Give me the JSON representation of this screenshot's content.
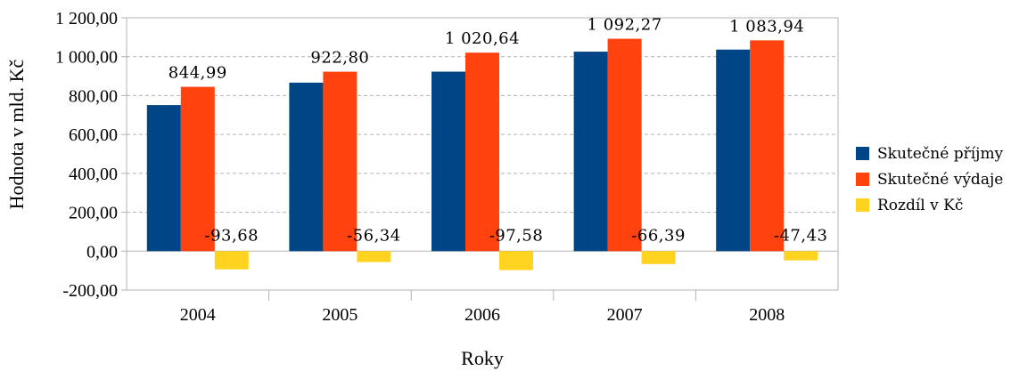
{
  "chart_data": {
    "type": "bar",
    "categories": [
      "2004",
      "2005",
      "2006",
      "2007",
      "2008"
    ],
    "series": [
      {
        "name": "Skutečné příjmy",
        "color": "#004586",
        "values": [
          751.31,
          866.46,
          923.06,
          1025.88,
          1036.51
        ],
        "labels": [
          "",
          "",
          "",
          "",
          ""
        ]
      },
      {
        "name": "Skutečné výdaje",
        "color": "#ff420e",
        "values": [
          844.99,
          922.8,
          1020.64,
          1092.27,
          1083.94
        ],
        "labels": [
          "844,99",
          "922,80",
          "1 020,64",
          "1 092,27",
          "1 083,94"
        ]
      },
      {
        "name": "Rozdíl v Kč",
        "color": "#ffd320",
        "values": [
          -93.68,
          -56.34,
          -97.58,
          -66.39,
          -47.43
        ],
        "labels": [
          "-93,68",
          "-56,34",
          "-97,58",
          "-66,39",
          "-47,43"
        ]
      }
    ],
    "xlabel": "Roky",
    "ylabel": "Hodnota v mld. Kč",
    "ylim": [
      -200,
      1200
    ],
    "yticks": [
      -200,
      0,
      200,
      400,
      600,
      800,
      1000,
      1200
    ],
    "ytick_labels": [
      "-200,00",
      "0,00",
      "200,00",
      "400,00",
      "600,00",
      "800,00",
      "1 000,00",
      "1 200,00"
    ],
    "grid": true,
    "legend_position": "right"
  }
}
